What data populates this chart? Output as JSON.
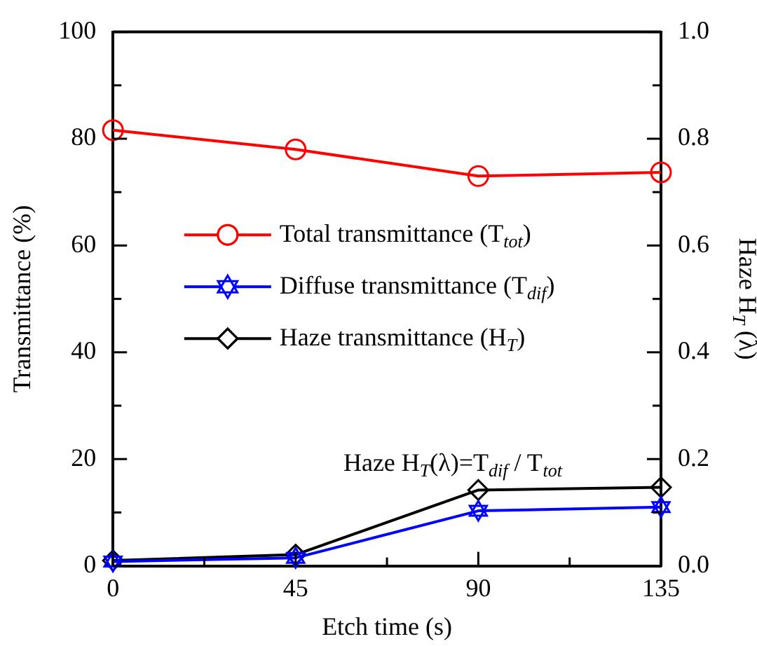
{
  "chart_data": {
    "type": "line",
    "xlabel": "Etch time (s)",
    "ylabel": "Transmittance (%)",
    "y2label": "Haze H$_{T}$ (λ)",
    "x": [
      0,
      45,
      90,
      135
    ],
    "series": [
      {
        "name": "Total transmittance (T$_{tot}$)",
        "color": "#ff0000",
        "marker": "circle",
        "values": [
          81.6,
          78,
          73,
          73.7
        ]
      },
      {
        "name": "Diffuse transmittance (T$_{dif}$)",
        "color": "#0000ff",
        "marker": "star",
        "values": [
          0.8,
          1.5,
          10.3,
          11
        ]
      },
      {
        "name": "Haze transmittance (H$_{T}$)",
        "color": "#000000",
        "marker": "diamond",
        "axis": "y2",
        "values": [
          0.01,
          0.021,
          0.142,
          0.147
        ]
      }
    ],
    "xlim": [
      0,
      135
    ],
    "xticks": [
      0,
      45,
      90,
      135
    ],
    "ylim": [
      0,
      100
    ],
    "yticks": [
      0,
      20,
      40,
      60,
      80,
      100
    ],
    "y2lim": [
      0,
      1
    ],
    "y2ticks": [
      {
        "value": 0,
        "label": "0.0"
      },
      0.2,
      0.4,
      0.6,
      0.8,
      {
        "value": 1,
        "label": "1.0"
      }
    ],
    "annotations": [
      "Haze H$_{T}$(λ)=T$_{dif}$ / T$_{tot}$"
    ],
    "legend": "left",
    "grid": false,
    "line_style": "solid"
  }
}
